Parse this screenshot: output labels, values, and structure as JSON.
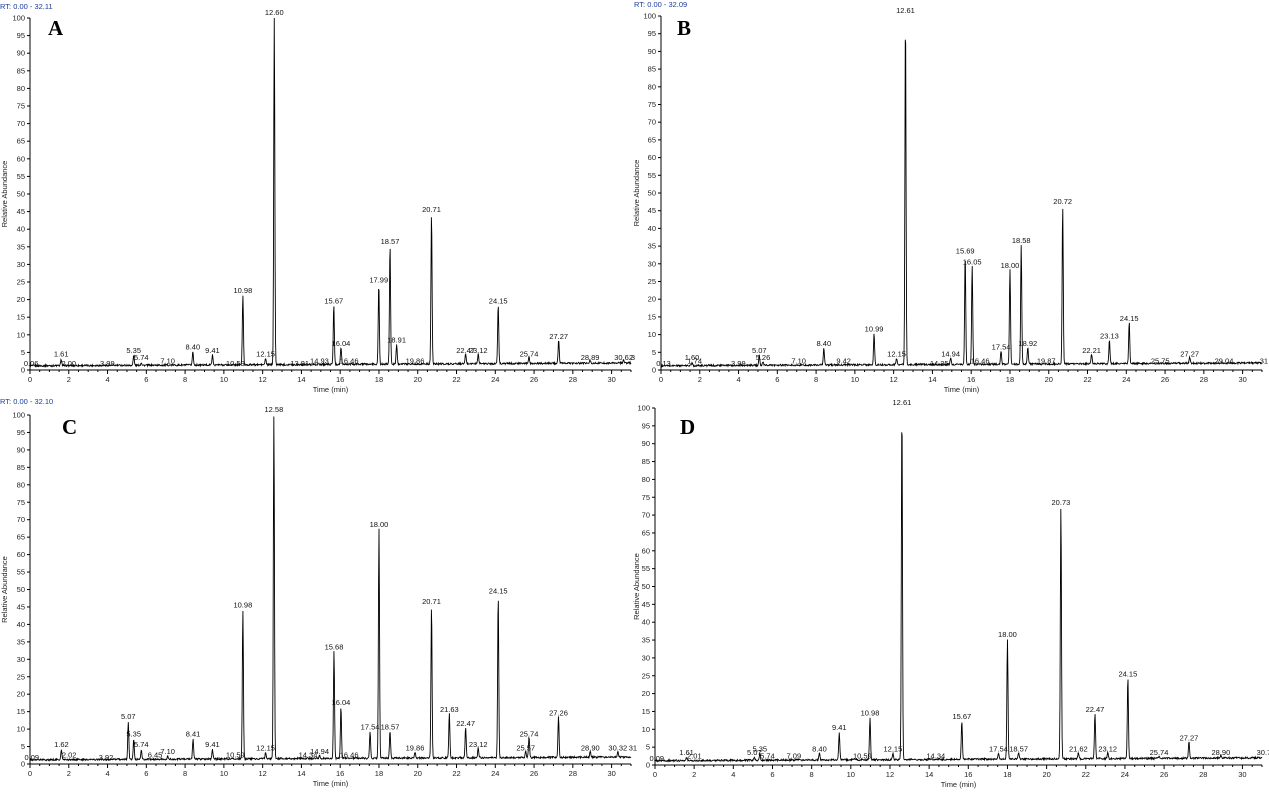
{
  "chart_data": [
    {
      "type": "line",
      "panel_label": "A",
      "rt_range": "RT: 0.00 - 32.11",
      "xlabel": "Time (min)",
      "ylabel": "Relative Abundance",
      "xlim": [
        0,
        31
      ],
      "ylim": [
        0,
        100
      ],
      "x_ticks": [
        0,
        2,
        4,
        6,
        8,
        10,
        12,
        14,
        16,
        18,
        20,
        22,
        24,
        26,
        28,
        30
      ],
      "y_ticks": [
        0,
        5,
        10,
        15,
        20,
        25,
        30,
        35,
        40,
        45,
        50,
        55,
        60,
        65,
        70,
        75,
        80,
        85,
        90,
        95,
        100
      ],
      "baseline": 2,
      "series": [
        {
          "peaks": [
            {
              "x": 0.06,
              "y": 0,
              "label": "0.06"
            },
            {
              "x": 1.61,
              "y": 3,
              "label": "1.61"
            },
            {
              "x": 2.0,
              "y": 0,
              "label": "2.00"
            },
            {
              "x": 3.99,
              "y": 0,
              "label": "3.99"
            },
            {
              "x": 5.35,
              "y": 4,
              "label": "5.35"
            },
            {
              "x": 5.74,
              "y": 2,
              "label": "5.74"
            },
            {
              "x": 7.1,
              "y": 1,
              "label": "7.10"
            },
            {
              "x": 8.4,
              "y": 5,
              "label": "8.40"
            },
            {
              "x": 9.41,
              "y": 4,
              "label": "9.41"
            },
            {
              "x": 10.59,
              "y": 0,
              "label": "10.59"
            },
            {
              "x": 10.98,
              "y": 21,
              "label": "10.98"
            },
            {
              "x": 12.15,
              "y": 3,
              "label": "12.15"
            },
            {
              "x": 12.6,
              "y": 100,
              "label": "12.60"
            },
            {
              "x": 13.91,
              "y": 0,
              "label": "13.91"
            },
            {
              "x": 14.93,
              "y": 1,
              "label": "14.93"
            },
            {
              "x": 15.67,
              "y": 18,
              "label": "15.67"
            },
            {
              "x": 16.04,
              "y": 6,
              "label": "16.04"
            },
            {
              "x": 16.46,
              "y": 1,
              "label": "16.46"
            },
            {
              "x": 17.99,
              "y": 24,
              "label": "17.99"
            },
            {
              "x": 18.57,
              "y": 35,
              "label": "18.57"
            },
            {
              "x": 18.91,
              "y": 7,
              "label": "18.91"
            },
            {
              "x": 19.86,
              "y": 1,
              "label": "19.86"
            },
            {
              "x": 20.71,
              "y": 44,
              "label": "20.71"
            },
            {
              "x": 22.47,
              "y": 4,
              "label": "22.47"
            },
            {
              "x": 23.12,
              "y": 4,
              "label": "23.12"
            },
            {
              "x": 24.15,
              "y": 18,
              "label": "24.15"
            },
            {
              "x": 25.74,
              "y": 3,
              "label": "25.74"
            },
            {
              "x": 27.27,
              "y": 8,
              "label": "27.27"
            },
            {
              "x": 28.89,
              "y": 2,
              "label": "28.89"
            },
            {
              "x": 30.62,
              "y": 2,
              "label": "30.62"
            },
            {
              "x": 31.1,
              "y": 2,
              "label": "3"
            }
          ]
        }
      ]
    },
    {
      "type": "line",
      "panel_label": "B",
      "rt_range": "RT: 0.00 - 32.09",
      "xlabel": "Time (min)",
      "ylabel": "Relative Abundance",
      "xlim": [
        0,
        31
      ],
      "ylim": [
        0,
        100
      ],
      "x_ticks": [
        0,
        2,
        4,
        6,
        8,
        10,
        12,
        14,
        16,
        18,
        20,
        22,
        24,
        26,
        28,
        30
      ],
      "y_ticks": [
        0,
        5,
        10,
        15,
        20,
        25,
        30,
        35,
        40,
        45,
        50,
        55,
        60,
        65,
        70,
        75,
        80,
        85,
        90,
        95,
        100
      ],
      "baseline": 2,
      "series": [
        {
          "peaks": [
            {
              "x": 0.13,
              "y": 0,
              "label": "0.13"
            },
            {
              "x": 1.6,
              "y": 2,
              "label": "1.60"
            },
            {
              "x": 1.74,
              "y": 1,
              "label": "1.74"
            },
            {
              "x": 3.99,
              "y": 0,
              "label": "3.99"
            },
            {
              "x": 5.07,
              "y": 4,
              "label": "5.07"
            },
            {
              "x": 5.26,
              "y": 2,
              "label": "5.26"
            },
            {
              "x": 7.1,
              "y": 1,
              "label": "7.10"
            },
            {
              "x": 8.4,
              "y": 6,
              "label": "8.40"
            },
            {
              "x": 9.42,
              "y": 1,
              "label": "9.42"
            },
            {
              "x": 10.99,
              "y": 10,
              "label": "10.99"
            },
            {
              "x": 12.15,
              "y": 3,
              "label": "12.15"
            },
            {
              "x": 12.61,
              "y": 100,
              "label": "12.61"
            },
            {
              "x": 14.35,
              "y": 0,
              "label": "14.35"
            },
            {
              "x": 14.94,
              "y": 3,
              "label": "14.94"
            },
            {
              "x": 15.69,
              "y": 32,
              "label": "15.69"
            },
            {
              "x": 16.05,
              "y": 29,
              "label": "16.05"
            },
            {
              "x": 16.46,
              "y": 1,
              "label": "16.46"
            },
            {
              "x": 17.54,
              "y": 5,
              "label": "17.54"
            },
            {
              "x": 18.0,
              "y": 28,
              "label": "18.00"
            },
            {
              "x": 18.58,
              "y": 35,
              "label": "18.58"
            },
            {
              "x": 18.92,
              "y": 6,
              "label": "18.92"
            },
            {
              "x": 19.87,
              "y": 1,
              "label": "19.87"
            },
            {
              "x": 20.72,
              "y": 46,
              "label": "20.72"
            },
            {
              "x": 22.21,
              "y": 4,
              "label": "22.21"
            },
            {
              "x": 23.13,
              "y": 8,
              "label": "23.13"
            },
            {
              "x": 24.15,
              "y": 13,
              "label": "24.15"
            },
            {
              "x": 25.75,
              "y": 1,
              "label": "25.75"
            },
            {
              "x": 27.27,
              "y": 3,
              "label": "27.27"
            },
            {
              "x": 29.04,
              "y": 1,
              "label": "29.04"
            },
            {
              "x": 31.1,
              "y": 1,
              "label": "31"
            }
          ]
        }
      ]
    },
    {
      "type": "line",
      "panel_label": "C",
      "rt_range": "RT: 0.00 - 32.10",
      "xlabel": "Time (min)",
      "ylabel": "Relative Abundance",
      "xlim": [
        0,
        31
      ],
      "ylim": [
        0,
        100
      ],
      "x_ticks": [
        0,
        2,
        4,
        6,
        8,
        10,
        12,
        14,
        16,
        18,
        20,
        22,
        24,
        26,
        28,
        30
      ],
      "y_ticks": [
        0,
        5,
        10,
        15,
        20,
        25,
        30,
        35,
        40,
        45,
        50,
        55,
        60,
        65,
        70,
        75,
        80,
        85,
        90,
        95,
        100
      ],
      "baseline": 2,
      "series": [
        {
          "peaks": [
            {
              "x": 0.09,
              "y": 0,
              "label": "0.09"
            },
            {
              "x": 1.62,
              "y": 4,
              "label": "1.62"
            },
            {
              "x": 2.02,
              "y": 1,
              "label": "2.02"
            },
            {
              "x": 3.92,
              "y": 0,
              "label": "3.92"
            },
            {
              "x": 5.07,
              "y": 12,
              "label": "5.07"
            },
            {
              "x": 5.35,
              "y": 7,
              "label": "5.35"
            },
            {
              "x": 5.74,
              "y": 4,
              "label": "5.74"
            },
            {
              "x": 6.45,
              "y": 1,
              "label": "6.45"
            },
            {
              "x": 7.1,
              "y": 2,
              "label": "7.10"
            },
            {
              "x": 8.41,
              "y": 7,
              "label": "8.41"
            },
            {
              "x": 9.41,
              "y": 4,
              "label": "9.41"
            },
            {
              "x": 10.59,
              "y": 1,
              "label": "10.59"
            },
            {
              "x": 10.98,
              "y": 44,
              "label": "10.98"
            },
            {
              "x": 12.15,
              "y": 3,
              "label": "12.15"
            },
            {
              "x": 12.58,
              "y": 100,
              "label": "12.58"
            },
            {
              "x": 14.34,
              "y": 1,
              "label": "14.34"
            },
            {
              "x": 14.94,
              "y": 2,
              "label": "14.94"
            },
            {
              "x": 15.68,
              "y": 32,
              "label": "15.68"
            },
            {
              "x": 16.04,
              "y": 16,
              "label": "16.04"
            },
            {
              "x": 16.46,
              "y": 1,
              "label": "16.46"
            },
            {
              "x": 17.54,
              "y": 9,
              "label": "17.54"
            },
            {
              "x": 18.0,
              "y": 67,
              "label": "18.00"
            },
            {
              "x": 18.57,
              "y": 9,
              "label": "18.57"
            },
            {
              "x": 19.86,
              "y": 3,
              "label": "19.86"
            },
            {
              "x": 20.71,
              "y": 45,
              "label": "20.71"
            },
            {
              "x": 21.63,
              "y": 14,
              "label": "21.63"
            },
            {
              "x": 22.47,
              "y": 10,
              "label": "22.47"
            },
            {
              "x": 23.12,
              "y": 4,
              "label": "23.12"
            },
            {
              "x": 24.15,
              "y": 48,
              "label": "24.15"
            },
            {
              "x": 25.57,
              "y": 3,
              "label": "25.57"
            },
            {
              "x": 25.74,
              "y": 7,
              "label": "25.74"
            },
            {
              "x": 27.26,
              "y": 13,
              "label": "27.26"
            },
            {
              "x": 28.9,
              "y": 3,
              "label": "28.90"
            },
            {
              "x": 30.32,
              "y": 3,
              "label": "30.32"
            },
            {
              "x": 31.1,
              "y": 3,
              "label": "31"
            }
          ]
        }
      ]
    },
    {
      "type": "line",
      "panel_label": "D",
      "rt_range": "",
      "xlabel": "Time (min)",
      "ylabel": "Relative Abundance",
      "xlim": [
        0,
        31
      ],
      "ylim": [
        0,
        100
      ],
      "x_ticks": [
        0,
        2,
        4,
        6,
        8,
        10,
        12,
        14,
        16,
        18,
        20,
        22,
        24,
        26,
        28,
        30
      ],
      "y_ticks": [
        0,
        5,
        10,
        15,
        20,
        25,
        30,
        35,
        40,
        45,
        50,
        55,
        60,
        65,
        70,
        75,
        80,
        85,
        90,
        95,
        100
      ],
      "baseline": 2,
      "series": [
        {
          "peaks": [
            {
              "x": 0.09,
              "y": 0,
              "label": "0.09"
            },
            {
              "x": 1.61,
              "y": 2,
              "label": "1.61"
            },
            {
              "x": 2.01,
              "y": 1,
              "label": "2.01"
            },
            {
              "x": 5.07,
              "y": 2,
              "label": "5.07"
            },
            {
              "x": 5.35,
              "y": 3,
              "label": "5.35"
            },
            {
              "x": 5.74,
              "y": 1,
              "label": "5.74"
            },
            {
              "x": 7.09,
              "y": 1,
              "label": "7.09"
            },
            {
              "x": 8.4,
              "y": 3,
              "label": "8.40"
            },
            {
              "x": 9.41,
              "y": 9,
              "label": "9.41"
            },
            {
              "x": 10.59,
              "y": 1,
              "label": "10.59"
            },
            {
              "x": 10.98,
              "y": 13,
              "label": "10.98"
            },
            {
              "x": 12.15,
              "y": 3,
              "label": "12.15"
            },
            {
              "x": 12.61,
              "y": 100,
              "label": "12.61"
            },
            {
              "x": 14.34,
              "y": 1,
              "label": "14.34"
            },
            {
              "x": 15.67,
              "y": 12,
              "label": "15.67"
            },
            {
              "x": 17.54,
              "y": 3,
              "label": "17.54"
            },
            {
              "x": 18.0,
              "y": 35,
              "label": "18.00"
            },
            {
              "x": 18.57,
              "y": 3,
              "label": "18.57"
            },
            {
              "x": 20.73,
              "y": 72,
              "label": "20.73"
            },
            {
              "x": 21.62,
              "y": 3,
              "label": "21.62"
            },
            {
              "x": 22.47,
              "y": 14,
              "label": "22.47"
            },
            {
              "x": 23.12,
              "y": 3,
              "label": "23.12"
            },
            {
              "x": 24.15,
              "y": 24,
              "label": "24.15"
            },
            {
              "x": 25.74,
              "y": 2,
              "label": "25.74"
            },
            {
              "x": 27.27,
              "y": 6,
              "label": "27.27"
            },
            {
              "x": 28.9,
              "y": 2,
              "label": "28.90"
            },
            {
              "x": 31.1,
              "y": 2,
              "label": "30.7"
            }
          ]
        }
      ]
    }
  ]
}
